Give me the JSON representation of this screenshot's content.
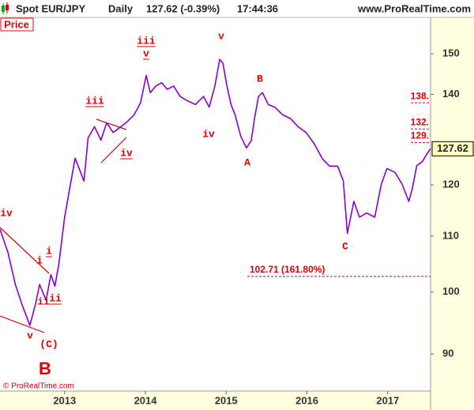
{
  "chart_data": {
    "type": "line",
    "title": {
      "symbol": "Spot EUR/JPY",
      "period": "Daily",
      "quote": "127.62 (-0.39%)",
      "time": "17:44:36",
      "site": "www.ProRealTime.com"
    },
    "panel_label": "Price",
    "footer": "© ProRealTime.com",
    "last_price_label": "127.62",
    "log_scale": true,
    "x": [
      2012.2,
      2012.3,
      2012.39,
      2012.47,
      2012.57,
      2012.64,
      2012.69,
      2012.77,
      2012.83,
      2012.88,
      2012.93,
      2013.0,
      2013.06,
      2013.13,
      2013.18,
      2013.24,
      2013.29,
      2013.37,
      2013.45,
      2013.52,
      2013.6,
      2013.66,
      2013.76,
      2013.86,
      2013.94,
      2014.01,
      2014.06,
      2014.13,
      2014.2,
      2014.27,
      2014.35,
      2014.43,
      2014.52,
      2014.62,
      2014.72,
      2014.79,
      2014.86,
      2014.92,
      2014.96,
      2015.01,
      2015.06,
      2015.11,
      2015.18,
      2015.25,
      2015.31,
      2015.35,
      2015.4,
      2015.45,
      2015.52,
      2015.6,
      2015.7,
      2015.8,
      2015.89,
      2015.99,
      2016.09,
      2016.19,
      2016.28,
      2016.38,
      2016.45,
      2016.5,
      2016.58,
      2016.65,
      2016.74,
      2016.84,
      2016.92,
      2016.99,
      2017.09,
      2017.18,
      2017.26,
      2017.3,
      2017.36,
      2017.43,
      2017.48,
      2017.53
    ],
    "series": [
      {
        "name": "Spot EUR/JPY",
        "color": "#8b00c8",
        "values": [
          111.3,
          106.9,
          101.3,
          98.0,
          94.5,
          98.0,
          101.3,
          98.6,
          103.0,
          101.0,
          105.0,
          113.6,
          119.0,
          125.6,
          123.4,
          120.8,
          130.0,
          132.5,
          129.5,
          133.4,
          131.2,
          132.0,
          133.4,
          135.2,
          138.0,
          144.6,
          140.4,
          142.0,
          142.8,
          141.2,
          142.0,
          139.5,
          138.5,
          137.6,
          139.5,
          137.0,
          142.0,
          148.6,
          147.6,
          142.0,
          137.6,
          135.2,
          130.4,
          127.8,
          129.4,
          134.3,
          139.5,
          140.4,
          137.6,
          137.0,
          135.2,
          134.3,
          132.5,
          131.2,
          128.7,
          125.5,
          123.9,
          123.9,
          120.8,
          110.5,
          116.7,
          113.6,
          114.4,
          113.6,
          120.1,
          123.4,
          122.6,
          120.1,
          116.7,
          119.0,
          124.0,
          124.9,
          126.4,
          127.62
        ]
      }
    ],
    "xlim": [
      2012.2,
      2017.53
    ],
    "xticks": [
      2013,
      2014,
      2015,
      2016,
      2017
    ],
    "ylim": [
      84.5,
      159.6
    ],
    "yticks": [
      90,
      100,
      110,
      120,
      140,
      150
    ],
    "levels": [
      {
        "value": 138,
        "label": "138."
      },
      {
        "value": 132,
        "label": "132."
      },
      {
        "value": 129,
        "label": "129."
      },
      {
        "value": 102.71,
        "label": "102.71 (161.80%)"
      }
    ],
    "annotations": [
      "iv",
      "i",
      "i",
      "ii",
      "ii",
      "v",
      "(C)",
      "B",
      "iii",
      "iv",
      "iii",
      "v",
      "v",
      "iv",
      "A",
      "B",
      "C"
    ]
  }
}
